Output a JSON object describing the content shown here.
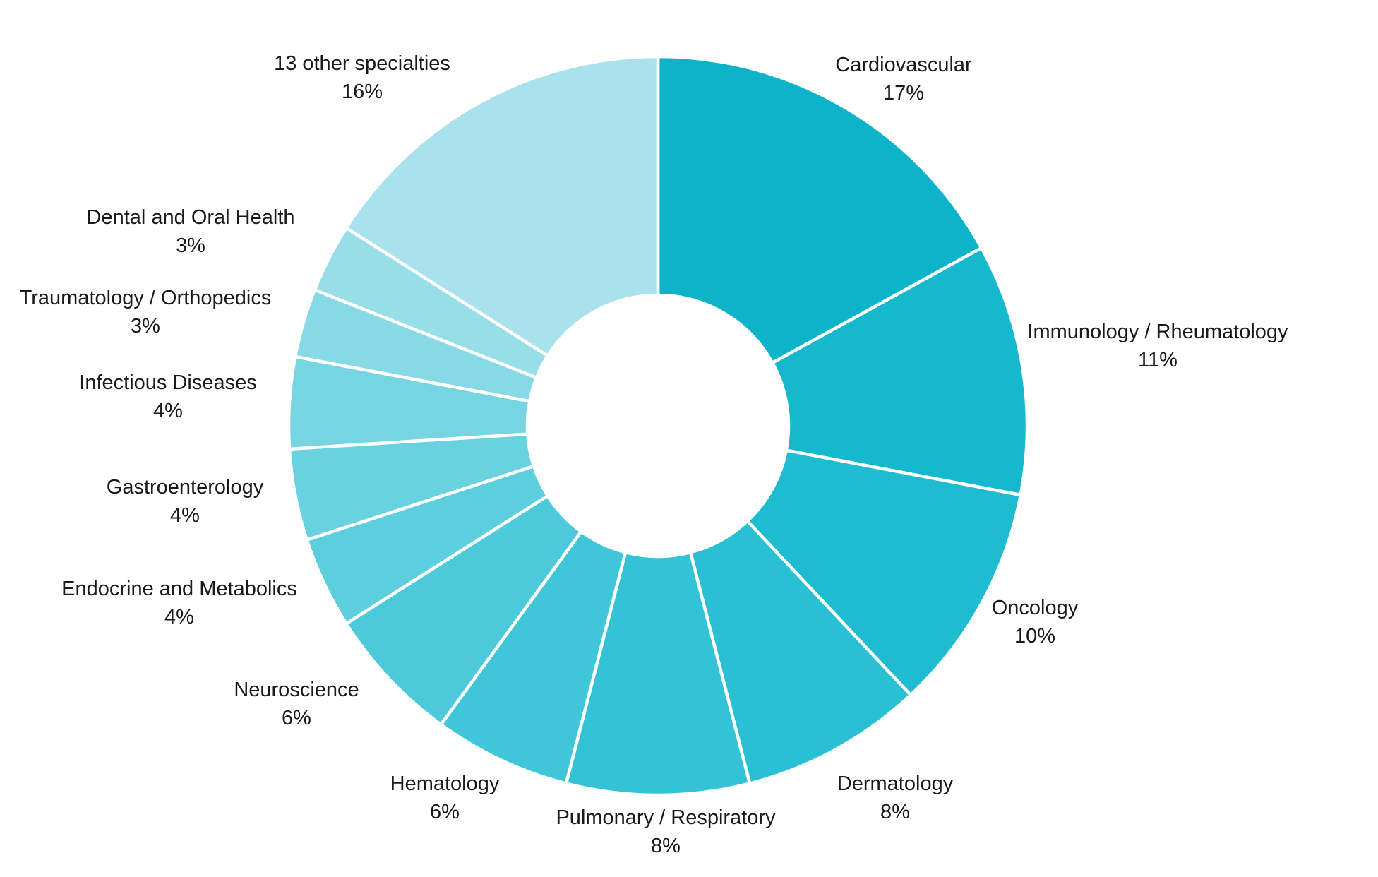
{
  "chart_data": {
    "type": "pie",
    "variant": "donut",
    "title": "",
    "legend_position": "none",
    "label_style": "outside, two lines (name above percent)",
    "background_color": "#ffffff",
    "separator_color": "#ffffff",
    "label_color": "#1a1a1a",
    "total": 100,
    "start_angle_deg": 0,
    "direction": "clockwise",
    "slices": [
      {
        "label": "Cardiovascular",
        "value": 17,
        "pct_label": "17%",
        "color": "#0db4c9"
      },
      {
        "label": "Immunology / Rheumatology",
        "value": 11,
        "pct_label": "11%",
        "color": "#16b8cd"
      },
      {
        "label": "Oncology",
        "value": 10,
        "pct_label": "10%",
        "color": "#1fbcd1"
      },
      {
        "label": "Dermatology",
        "value": 8,
        "pct_label": "8%",
        "color": "#29c0d3"
      },
      {
        "label": "Pulmonary / Respiratory",
        "value": 8,
        "pct_label": "8%",
        "color": "#34c3d6"
      },
      {
        "label": "Hematology",
        "value": 6,
        "pct_label": "6%",
        "color": "#3fc7d9"
      },
      {
        "label": "Neuroscience",
        "value": 6,
        "pct_label": "6%",
        "color": "#4ccadb"
      },
      {
        "label": "Endocrine and Metabolics",
        "value": 4,
        "pct_label": "4%",
        "color": "#5ccedd"
      },
      {
        "label": "Gastroenterology",
        "value": 4,
        "pct_label": "4%",
        "color": "#69d1e0"
      },
      {
        "label": "Infectious Diseases",
        "value": 4,
        "pct_label": "4%",
        "color": "#77d5e2"
      },
      {
        "label": "Traumatology / Orthopedics",
        "value": 3,
        "pct_label": "3%",
        "color": "#87d9e6"
      },
      {
        "label": "Dental and Oral Health",
        "value": 3,
        "pct_label": "3%",
        "color": "#98dee9"
      },
      {
        "label": "13 other specialties",
        "value": 16,
        "pct_label": "16%",
        "color": "#a9e2ec"
      }
    ]
  }
}
